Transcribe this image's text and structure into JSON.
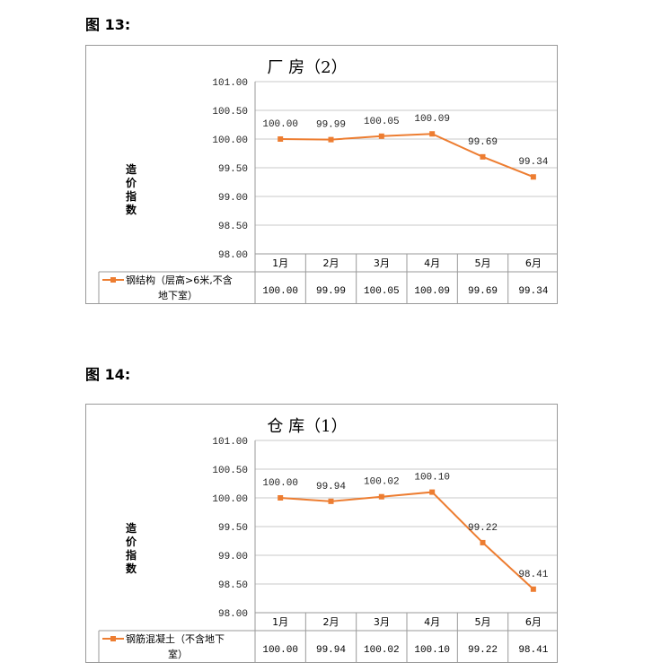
{
  "figures": [
    {
      "label": "图 13:"
    },
    {
      "label": "图 14:"
    }
  ],
  "chart_data": [
    {
      "type": "line",
      "title": "厂  房（2）",
      "ylabel": "造价指数",
      "ylim": [
        98.0,
        101.0
      ],
      "yticks": [
        "98.00",
        "98.50",
        "99.00",
        "99.50",
        "100.00",
        "100.50",
        "101.00"
      ],
      "categories": [
        "1月",
        "2月",
        "3月",
        "4月",
        "5月",
        "6月"
      ],
      "series": [
        {
          "name": "钢结构（层高>6米,不含地下室）",
          "legend_lines": [
            "钢结构（层高>6米,不含",
            "地下室）"
          ],
          "values": [
            100.0,
            99.99,
            100.05,
            100.09,
            99.69,
            99.34
          ],
          "labels": [
            "100.00",
            "99.99",
            "100.05",
            "100.09",
            "99.69",
            "99.34"
          ]
        }
      ],
      "grid": true,
      "legend": "data-table",
      "color": "#ED7D31"
    },
    {
      "type": "line",
      "title": "仓  库（1）",
      "ylabel": "造价指数",
      "ylim": [
        98.0,
        101.0
      ],
      "yticks": [
        "98.00",
        "98.50",
        "99.00",
        "99.50",
        "100.00",
        "100.50",
        "101.00"
      ],
      "categories": [
        "1月",
        "2月",
        "3月",
        "4月",
        "5月",
        "6月"
      ],
      "series": [
        {
          "name": "钢筋混凝土（不含地下室）",
          "legend_lines": [
            "钢筋混凝土（不含地下",
            "室）"
          ],
          "values": [
            100.0,
            99.94,
            100.02,
            100.1,
            99.22,
            98.41
          ],
          "labels": [
            "100.00",
            "99.94",
            "100.02",
            "100.10",
            "99.22",
            "98.41"
          ]
        }
      ],
      "grid": true,
      "legend": "data-table",
      "color": "#ED7D31"
    }
  ]
}
